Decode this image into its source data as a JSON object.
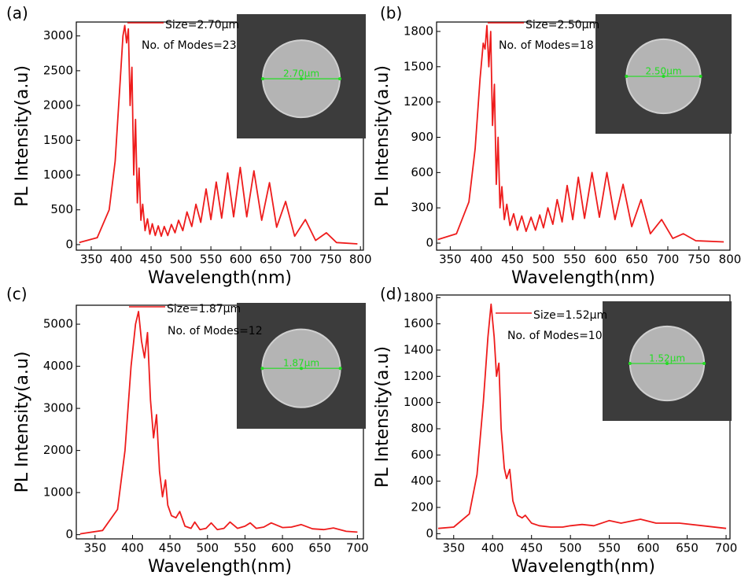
{
  "chart_data": [
    {
      "type": "line",
      "panel_label": "(a)",
      "size_label": "Size=2.70μm",
      "modes_label": "No. of Modes=23",
      "inset_label": "2.70μm",
      "xlabel": "Wavelength(nm)",
      "ylabel": "PL Intensity(a.u)",
      "color": "#ee1c1c",
      "xlim": [
        325,
        805
      ],
      "ylim": [
        -80,
        3200
      ],
      "xticks": [
        350,
        400,
        450,
        500,
        550,
        600,
        650,
        700,
        750,
        800
      ],
      "yticks": [
        0,
        500,
        1000,
        1500,
        2000,
        2500,
        3000
      ],
      "x": [
        330,
        360,
        380,
        390,
        398,
        403,
        406,
        409,
        412,
        415,
        418,
        421,
        424,
        427,
        430,
        433,
        436,
        440,
        444,
        448,
        452,
        457,
        462,
        467,
        472,
        478,
        484,
        490,
        496,
        503,
        510,
        518,
        525,
        533,
        542,
        550,
        559,
        568,
        578,
        588,
        599,
        610,
        622,
        635,
        648,
        660,
        675,
        690,
        708,
        725,
        743,
        760,
        795
      ],
      "values": [
        30,
        100,
        500,
        1200,
        2300,
        3000,
        3150,
        2900,
        3100,
        2000,
        2550,
        1000,
        1800,
        600,
        1100,
        350,
        580,
        200,
        370,
        150,
        300,
        130,
        270,
        120,
        260,
        130,
        290,
        170,
        350,
        200,
        470,
        260,
        580,
        320,
        800,
        360,
        900,
        380,
        1030,
        400,
        1110,
        400,
        1060,
        350,
        890,
        250,
        620,
        120,
        360,
        60,
        170,
        30,
        10
      ]
    },
    {
      "type": "line",
      "panel_label": "(b)",
      "size_label": "Size=2.50μm",
      "modes_label": "No. of Modes=18",
      "inset_label": "2.50μm",
      "xlabel": "Wavelength(nm)",
      "ylabel": "PL Intensity(a.u)",
      "color": "#ee1c1c",
      "xlim": [
        328,
        800
      ],
      "ylim": [
        -60,
        1880
      ],
      "xticks": [
        350,
        400,
        450,
        500,
        550,
        600,
        650,
        700,
        750,
        800
      ],
      "yticks": [
        0,
        300,
        600,
        900,
        1200,
        1500,
        1800
      ],
      "x": [
        330,
        360,
        380,
        390,
        398,
        403,
        406,
        409,
        412,
        415,
        418,
        421,
        424,
        427,
        430,
        433,
        437,
        441,
        446,
        452,
        458,
        465,
        472,
        480,
        487,
        494,
        500,
        507,
        515,
        522,
        530,
        538,
        547,
        556,
        566,
        578,
        590,
        602,
        615,
        628,
        642,
        657,
        672,
        690,
        708,
        725,
        745,
        790
      ],
      "values": [
        30,
        80,
        350,
        800,
        1400,
        1700,
        1650,
        1850,
        1500,
        1800,
        1000,
        1350,
        500,
        900,
        300,
        480,
        200,
        330,
        150,
        250,
        110,
        230,
        100,
        220,
        110,
        240,
        130,
        300,
        160,
        370,
        180,
        490,
        200,
        560,
        210,
        600,
        220,
        600,
        200,
        500,
        140,
        370,
        80,
        200,
        40,
        80,
        20,
        10
      ]
    },
    {
      "type": "line",
      "panel_label": "(c)",
      "size_label": "Size=1.87μm",
      "modes_label": "No. of Modes=12",
      "inset_label": "1.87μm",
      "xlabel": "Wavelength(nm)",
      "ylabel": "PL Intensity(a.u)",
      "color": "#ee1c1c",
      "xlim": [
        325,
        708
      ],
      "ylim": [
        -100,
        5450
      ],
      "xticks": [
        350,
        400,
        450,
        500,
        550,
        600,
        650,
        700
      ],
      "yticks": [
        0,
        1000,
        2000,
        3000,
        4000,
        5000
      ],
      "x": [
        330,
        360,
        380,
        390,
        398,
        404,
        408,
        412,
        416,
        420,
        424,
        428,
        432,
        436,
        440,
        444,
        447,
        452,
        458,
        463,
        470,
        478,
        483,
        490,
        498,
        505,
        513,
        522,
        530,
        540,
        550,
        557,
        565,
        575,
        585,
        600,
        612,
        625,
        640,
        655,
        668,
        685,
        700
      ],
      "values": [
        20,
        100,
        600,
        2000,
        4000,
        5000,
        5300,
        4600,
        4200,
        4800,
        3200,
        2300,
        2850,
        1500,
        900,
        1300,
        700,
        450,
        400,
        550,
        200,
        150,
        300,
        120,
        150,
        280,
        120,
        150,
        300,
        150,
        200,
        280,
        150,
        180,
        280,
        170,
        180,
        240,
        140,
        120,
        160,
        80,
        60
      ]
    },
    {
      "type": "line",
      "panel_label": "(d)",
      "size_label": "Size=1.52μm",
      "modes_label": "No. of Modes=10",
      "inset_label": "1.52μm",
      "xlabel": "Wavelength(nm)",
      "ylabel": "PL Intensity(a.u)",
      "color": "#ee1c1c",
      "xlim": [
        328,
        705
      ],
      "ylim": [
        -40,
        1820
      ],
      "xticks": [
        350,
        400,
        450,
        500,
        550,
        600,
        650,
        700
      ],
      "yticks": [
        0,
        200,
        400,
        600,
        800,
        1000,
        1200,
        1400,
        1600,
        1800
      ],
      "x": [
        330,
        350,
        370,
        380,
        388,
        394,
        398,
        402,
        405,
        408,
        411,
        415,
        418,
        422,
        426,
        432,
        438,
        442,
        450,
        460,
        475,
        490,
        500,
        515,
        530,
        550,
        565,
        590,
        610,
        640,
        670,
        700
      ],
      "values": [
        40,
        50,
        150,
        450,
        1000,
        1500,
        1750,
        1500,
        1200,
        1300,
        800,
        500,
        420,
        490,
        250,
        140,
        120,
        140,
        80,
        60,
        50,
        50,
        60,
        70,
        60,
        100,
        80,
        110,
        80,
        80,
        60,
        40
      ]
    }
  ]
}
